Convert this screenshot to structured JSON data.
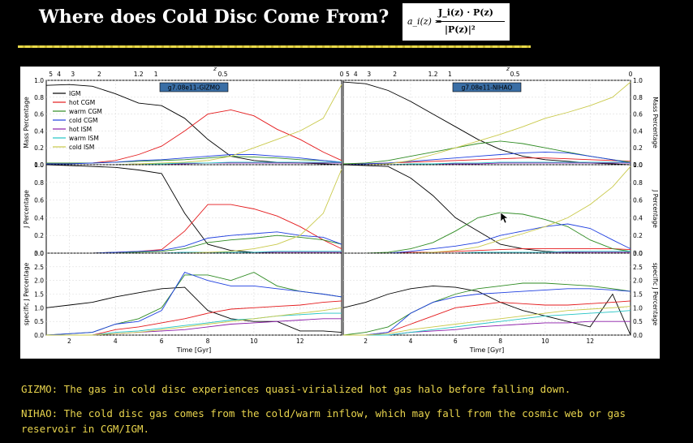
{
  "slide": {
    "title": "Where does Cold Disc Come From?",
    "formula": {
      "lhs": "a_i(z) =",
      "numerator": "J_i(z) · P(z)",
      "denominator": "|P(z)|²"
    },
    "notes": [
      "GIZMO: The gas in cold disc experiences quasi-virialized hot gas halo before falling down.",
      "NIHAO: The cold disc gas comes from the cold/warm inflow, which may fall from the cosmic web or gas reservoir in CGM/IGM."
    ]
  },
  "chart_data": {
    "type": "line",
    "panels_title": [
      "g7.08e11-GIZMO",
      "g7.08e11-NIHAO"
    ],
    "xlabel": "Time [Gyr]",
    "xlim": [
      1,
      13.8
    ],
    "xticks": [
      "2",
      "4",
      "6",
      "8",
      "10",
      "12"
    ],
    "top_axis_label": "z",
    "top_ticks": [
      {
        "label": "5",
        "t": 1.2
      },
      {
        "label": "4",
        "t": 1.55
      },
      {
        "label": "3",
        "t": 2.15
      },
      {
        "label": "2",
        "t": 3.3
      },
      {
        "label": "1.2",
        "t": 5.0
      },
      {
        "label": "1",
        "t": 5.75
      },
      {
        "label": "0.5",
        "t": 8.65
      },
      {
        "label": "0",
        "t": 13.8
      }
    ],
    "rows": [
      {
        "ylabel": "Mass Percentage",
        "ylim": [
          0,
          1.0
        ],
        "yticks": [
          "0.0",
          "0.2",
          "0.4",
          "0.6",
          "0.8",
          "1.0"
        ]
      },
      {
        "ylabel": "J Percentage",
        "ylim": [
          0,
          1.0
        ],
        "yticks": [
          "0.0",
          "0.2",
          "0.4",
          "0.6",
          "0.8",
          "1.0"
        ]
      },
      {
        "ylabel": "specific J Percentage",
        "ylim": [
          0,
          3.0
        ],
        "yticks": [
          "0.0",
          "0.5",
          "1.0",
          "1.5",
          "2.0",
          "2.5",
          "3.0"
        ]
      }
    ],
    "legend": [
      "IGM",
      "hot CGM",
      "warm CGM",
      "cold CGM",
      "hot ISM",
      "warm ISM",
      "cold ISM"
    ],
    "legend_position": "upper-left",
    "colors": {
      "IGM": "#000000",
      "hot CGM": "#e41a1c",
      "warm CGM": "#2e8b22",
      "cold CGM": "#1f3fe0",
      "hot ISM": "#8a1aa8",
      "warm ISM": "#22c4c4",
      "cold ISM": "#c9c94a"
    },
    "x": [
      1.0,
      2.0,
      3.0,
      4.0,
      5.0,
      6.0,
      7.0,
      8.0,
      9.0,
      10.0,
      11.0,
      12.0,
      13.0,
      13.8
    ],
    "panels": [
      {
        "name": "GIZMO",
        "series": [
          {
            "name": "IGM",
            "mass": [
              0.94,
              0.95,
              0.93,
              0.84,
              0.73,
              0.7,
              0.55,
              0.3,
              0.1,
              0.05,
              0.03,
              0.02,
              0.01,
              0.0
            ],
            "J": [
              1.0,
              0.99,
              0.98,
              0.97,
              0.94,
              0.9,
              0.45,
              0.1,
              0.03,
              0.01,
              0.0,
              0.0,
              0.0,
              0.0
            ],
            "sJ": [
              1.0,
              1.1,
              1.2,
              1.4,
              1.55,
              1.7,
              1.75,
              0.9,
              0.6,
              0.5,
              0.5,
              0.15,
              0.15,
              0.1
            ]
          },
          {
            "name": "hot CGM",
            "mass": [
              0.02,
              0.02,
              0.02,
              0.05,
              0.12,
              0.22,
              0.4,
              0.6,
              0.65,
              0.58,
              0.42,
              0.3,
              0.15,
              0.05
            ],
            "J": [
              0.0,
              0.0,
              0.0,
              0.01,
              0.02,
              0.04,
              0.25,
              0.55,
              0.55,
              0.5,
              0.42,
              0.3,
              0.15,
              0.05
            ],
            "sJ": [
              0.0,
              0.0,
              0.0,
              0.2,
              0.3,
              0.45,
              0.6,
              0.8,
              0.95,
              1.0,
              1.05,
              1.1,
              1.2,
              1.25
            ]
          },
          {
            "name": "warm CGM",
            "mass": [
              0.02,
              0.02,
              0.02,
              0.03,
              0.04,
              0.05,
              0.06,
              0.08,
              0.1,
              0.09,
              0.08,
              0.06,
              0.05,
              0.03
            ],
            "J": [
              0.0,
              0.0,
              0.0,
              0.01,
              0.01,
              0.02,
              0.05,
              0.12,
              0.15,
              0.17,
              0.2,
              0.18,
              0.15,
              0.1
            ],
            "sJ": [
              0.0,
              0.05,
              0.1,
              0.4,
              0.6,
              1.0,
              2.2,
              2.2,
              2.0,
              2.3,
              1.8,
              1.6,
              1.5,
              1.4
            ]
          },
          {
            "name": "cold CGM",
            "mass": [
              0.01,
              0.01,
              0.02,
              0.03,
              0.05,
              0.06,
              0.08,
              0.1,
              0.12,
              0.12,
              0.1,
              0.08,
              0.05,
              0.03
            ],
            "J": [
              0.0,
              0.0,
              0.0,
              0.01,
              0.02,
              0.03,
              0.08,
              0.17,
              0.2,
              0.22,
              0.24,
              0.2,
              0.18,
              0.1
            ],
            "sJ": [
              0.0,
              0.05,
              0.1,
              0.4,
              0.5,
              0.9,
              2.3,
              2.0,
              1.8,
              1.8,
              1.7,
              1.6,
              1.5,
              1.4
            ]
          },
          {
            "name": "hot ISM",
            "mass": [
              0.0,
              0.0,
              0.0,
              0.0,
              0.01,
              0.01,
              0.01,
              0.02,
              0.02,
              0.02,
              0.02,
              0.02,
              0.02,
              0.02
            ],
            "J": [
              0.0,
              0.0,
              0.0,
              0.0,
              0.0,
              0.0,
              0.01,
              0.01,
              0.01,
              0.01,
              0.01,
              0.01,
              0.01,
              0.01
            ],
            "sJ": [
              0.0,
              0.0,
              0.0,
              0.05,
              0.1,
              0.15,
              0.2,
              0.3,
              0.4,
              0.45,
              0.5,
              0.55,
              0.6,
              0.6
            ]
          },
          {
            "name": "warm ISM",
            "mass": [
              0.0,
              0.0,
              0.0,
              0.0,
              0.01,
              0.01,
              0.02,
              0.02,
              0.03,
              0.03,
              0.03,
              0.03,
              0.03,
              0.03
            ],
            "J": [
              0.0,
              0.0,
              0.0,
              0.0,
              0.0,
              0.0,
              0.01,
              0.01,
              0.01,
              0.01,
              0.02,
              0.02,
              0.02,
              0.02
            ],
            "sJ": [
              0.0,
              0.0,
              0.0,
              0.1,
              0.15,
              0.25,
              0.35,
              0.45,
              0.55,
              0.6,
              0.7,
              0.75,
              0.8,
              0.8
            ]
          },
          {
            "name": "cold ISM",
            "mass": [
              0.0,
              0.0,
              0.0,
              0.0,
              0.01,
              0.02,
              0.03,
              0.05,
              0.1,
              0.2,
              0.3,
              0.4,
              0.55,
              0.95
            ],
            "J": [
              0.0,
              0.0,
              0.0,
              0.0,
              0.0,
              0.0,
              0.0,
              0.01,
              0.02,
              0.05,
              0.1,
              0.2,
              0.45,
              0.95
            ],
            "sJ": [
              0.0,
              0.0,
              0.0,
              0.05,
              0.1,
              0.2,
              0.3,
              0.4,
              0.5,
              0.6,
              0.7,
              0.8,
              0.9,
              1.0
            ]
          }
        ]
      },
      {
        "name": "NIHAO",
        "series": [
          {
            "name": "IGM",
            "mass": [
              0.98,
              0.96,
              0.88,
              0.75,
              0.6,
              0.45,
              0.3,
              0.18,
              0.1,
              0.06,
              0.04,
              0.02,
              0.01,
              0.0
            ],
            "J": [
              1.0,
              0.99,
              0.98,
              0.85,
              0.65,
              0.4,
              0.25,
              0.1,
              0.05,
              0.02,
              0.01,
              0.0,
              0.0,
              0.0
            ],
            "sJ": [
              1.0,
              1.2,
              1.5,
              1.7,
              1.8,
              1.75,
              1.6,
              1.2,
              0.9,
              0.7,
              0.5,
              0.3,
              1.5,
              0.0
            ]
          },
          {
            "name": "hot CGM",
            "mass": [
              0.01,
              0.01,
              0.02,
              0.03,
              0.04,
              0.05,
              0.06,
              0.07,
              0.08,
              0.08,
              0.07,
              0.06,
              0.05,
              0.04
            ],
            "J": [
              0.0,
              0.0,
              0.0,
              0.01,
              0.01,
              0.02,
              0.03,
              0.04,
              0.05,
              0.05,
              0.05,
              0.05,
              0.05,
              0.04
            ],
            "sJ": [
              0.0,
              0.0,
              0.1,
              0.4,
              0.7,
              1.0,
              1.1,
              1.2,
              1.15,
              1.1,
              1.1,
              1.15,
              1.2,
              1.25
            ]
          },
          {
            "name": "warm CGM",
            "mass": [
              0.01,
              0.02,
              0.05,
              0.1,
              0.15,
              0.2,
              0.25,
              0.28,
              0.25,
              0.2,
              0.15,
              0.1,
              0.06,
              0.03
            ],
            "J": [
              0.0,
              0.0,
              0.01,
              0.05,
              0.12,
              0.25,
              0.4,
              0.46,
              0.44,
              0.38,
              0.3,
              0.15,
              0.05,
              0.02
            ],
            "sJ": [
              0.0,
              0.1,
              0.3,
              0.8,
              1.2,
              1.5,
              1.7,
              1.8,
              1.9,
              1.9,
              1.85,
              1.8,
              1.7,
              1.6
            ]
          },
          {
            "name": "cold CGM",
            "mass": [
              0.0,
              0.01,
              0.02,
              0.04,
              0.06,
              0.08,
              0.1,
              0.12,
              0.14,
              0.15,
              0.14,
              0.1,
              0.06,
              0.02
            ],
            "J": [
              0.0,
              0.0,
              0.0,
              0.02,
              0.05,
              0.08,
              0.12,
              0.2,
              0.25,
              0.3,
              0.33,
              0.28,
              0.15,
              0.05
            ],
            "sJ": [
              0.0,
              0.0,
              0.1,
              0.8,
              1.2,
              1.4,
              1.5,
              1.55,
              1.6,
              1.65,
              1.7,
              1.7,
              1.65,
              1.6
            ]
          },
          {
            "name": "hot ISM",
            "mass": [
              0.0,
              0.0,
              0.0,
              0.0,
              0.01,
              0.01,
              0.01,
              0.02,
              0.02,
              0.02,
              0.02,
              0.02,
              0.02,
              0.02
            ],
            "J": [
              0.0,
              0.0,
              0.0,
              0.0,
              0.0,
              0.0,
              0.01,
              0.01,
              0.01,
              0.01,
              0.01,
              0.01,
              0.01,
              0.01
            ],
            "sJ": [
              0.0,
              0.0,
              0.0,
              0.1,
              0.15,
              0.2,
              0.3,
              0.35,
              0.4,
              0.45,
              0.45,
              0.5,
              0.5,
              0.5
            ]
          },
          {
            "name": "warm ISM",
            "mass": [
              0.0,
              0.0,
              0.0,
              0.01,
              0.01,
              0.02,
              0.02,
              0.03,
              0.03,
              0.03,
              0.03,
              0.03,
              0.03,
              0.03
            ],
            "J": [
              0.0,
              0.0,
              0.0,
              0.0,
              0.0,
              0.0,
              0.01,
              0.01,
              0.01,
              0.01,
              0.02,
              0.02,
              0.02,
              0.02
            ],
            "sJ": [
              0.0,
              0.0,
              0.0,
              0.1,
              0.2,
              0.3,
              0.4,
              0.5,
              0.6,
              0.7,
              0.75,
              0.8,
              0.85,
              0.9
            ]
          },
          {
            "name": "cold ISM",
            "mass": [
              0.0,
              0.0,
              0.01,
              0.05,
              0.12,
              0.2,
              0.28,
              0.36,
              0.45,
              0.55,
              0.62,
              0.7,
              0.8,
              0.98
            ],
            "J": [
              0.0,
              0.0,
              0.0,
              0.0,
              0.01,
              0.03,
              0.07,
              0.15,
              0.22,
              0.3,
              0.4,
              0.55,
              0.75,
              0.98
            ],
            "sJ": [
              0.0,
              0.0,
              0.05,
              0.2,
              0.3,
              0.4,
              0.5,
              0.6,
              0.7,
              0.8,
              0.9,
              0.95,
              1.0,
              1.05
            ]
          }
        ]
      }
    ]
  }
}
